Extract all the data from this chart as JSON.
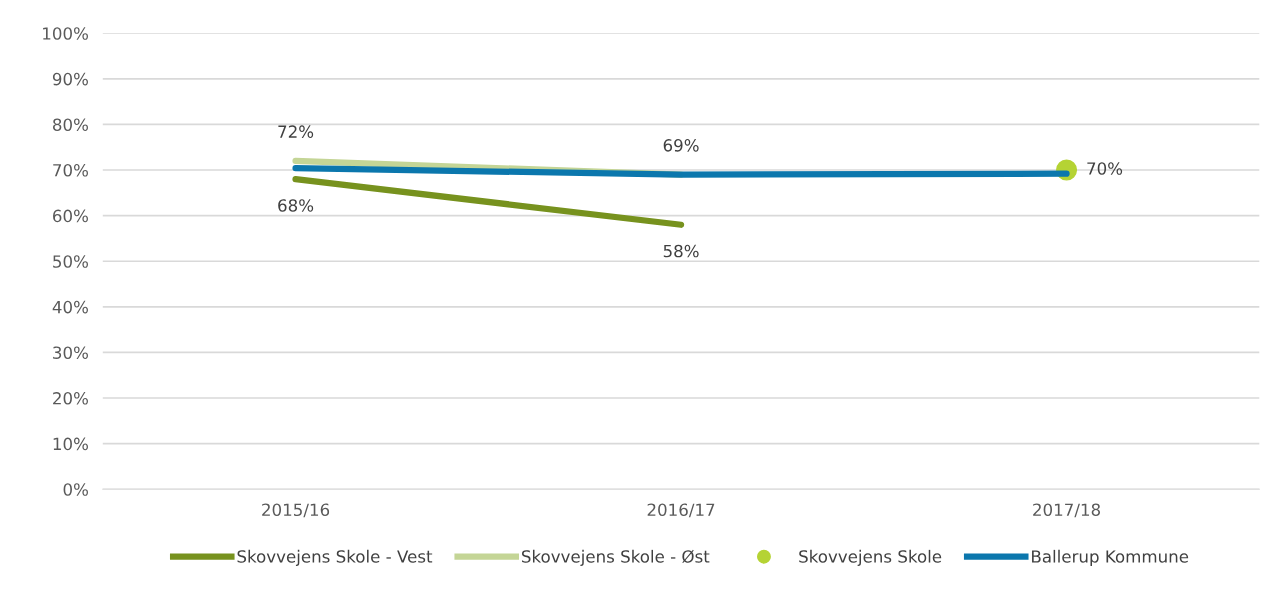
{
  "chart_data": {
    "type": "line",
    "categories": [
      "2015/16",
      "2016/17",
      "2017/18"
    ],
    "series": [
      {
        "name": "Skovvejens Skole - Vest",
        "color": "#77921e",
        "values": [
          68,
          58,
          null
        ],
        "value_labels": [
          "68%",
          "58%",
          null
        ]
      },
      {
        "name": "Skovvejens Skole - Øst",
        "color": "#c4d596",
        "values": [
          72,
          69,
          null
        ],
        "value_labels": [
          "72%",
          "69%",
          null
        ]
      },
      {
        "name": "Skovvejens Skole",
        "type": "scatter",
        "marker": "circle",
        "color": "#b5d334",
        "values": [
          null,
          null,
          70
        ],
        "value_labels": [
          null,
          null,
          "70%"
        ]
      },
      {
        "name": "Ballerup Kommune",
        "color": "#0b77ad",
        "values": [
          70.4,
          69.0,
          69.2
        ]
      }
    ],
    "ylim": [
      0,
      100
    ],
    "yticks": [
      {
        "value": 0,
        "label": "0%"
      },
      {
        "value": 10,
        "label": "10%"
      },
      {
        "value": 20,
        "label": "20%"
      },
      {
        "value": 30,
        "label": "30%"
      },
      {
        "value": 40,
        "label": "40%"
      },
      {
        "value": 50,
        "label": "50%"
      },
      {
        "value": 60,
        "label": "60%"
      },
      {
        "value": 70,
        "label": "70%"
      },
      {
        "value": 80,
        "label": "80%"
      },
      {
        "value": 90,
        "label": "90%"
      },
      {
        "value": 100,
        "label": "100%"
      }
    ],
    "grid": "y",
    "legend": "bottom",
    "line_style": "solid"
  }
}
